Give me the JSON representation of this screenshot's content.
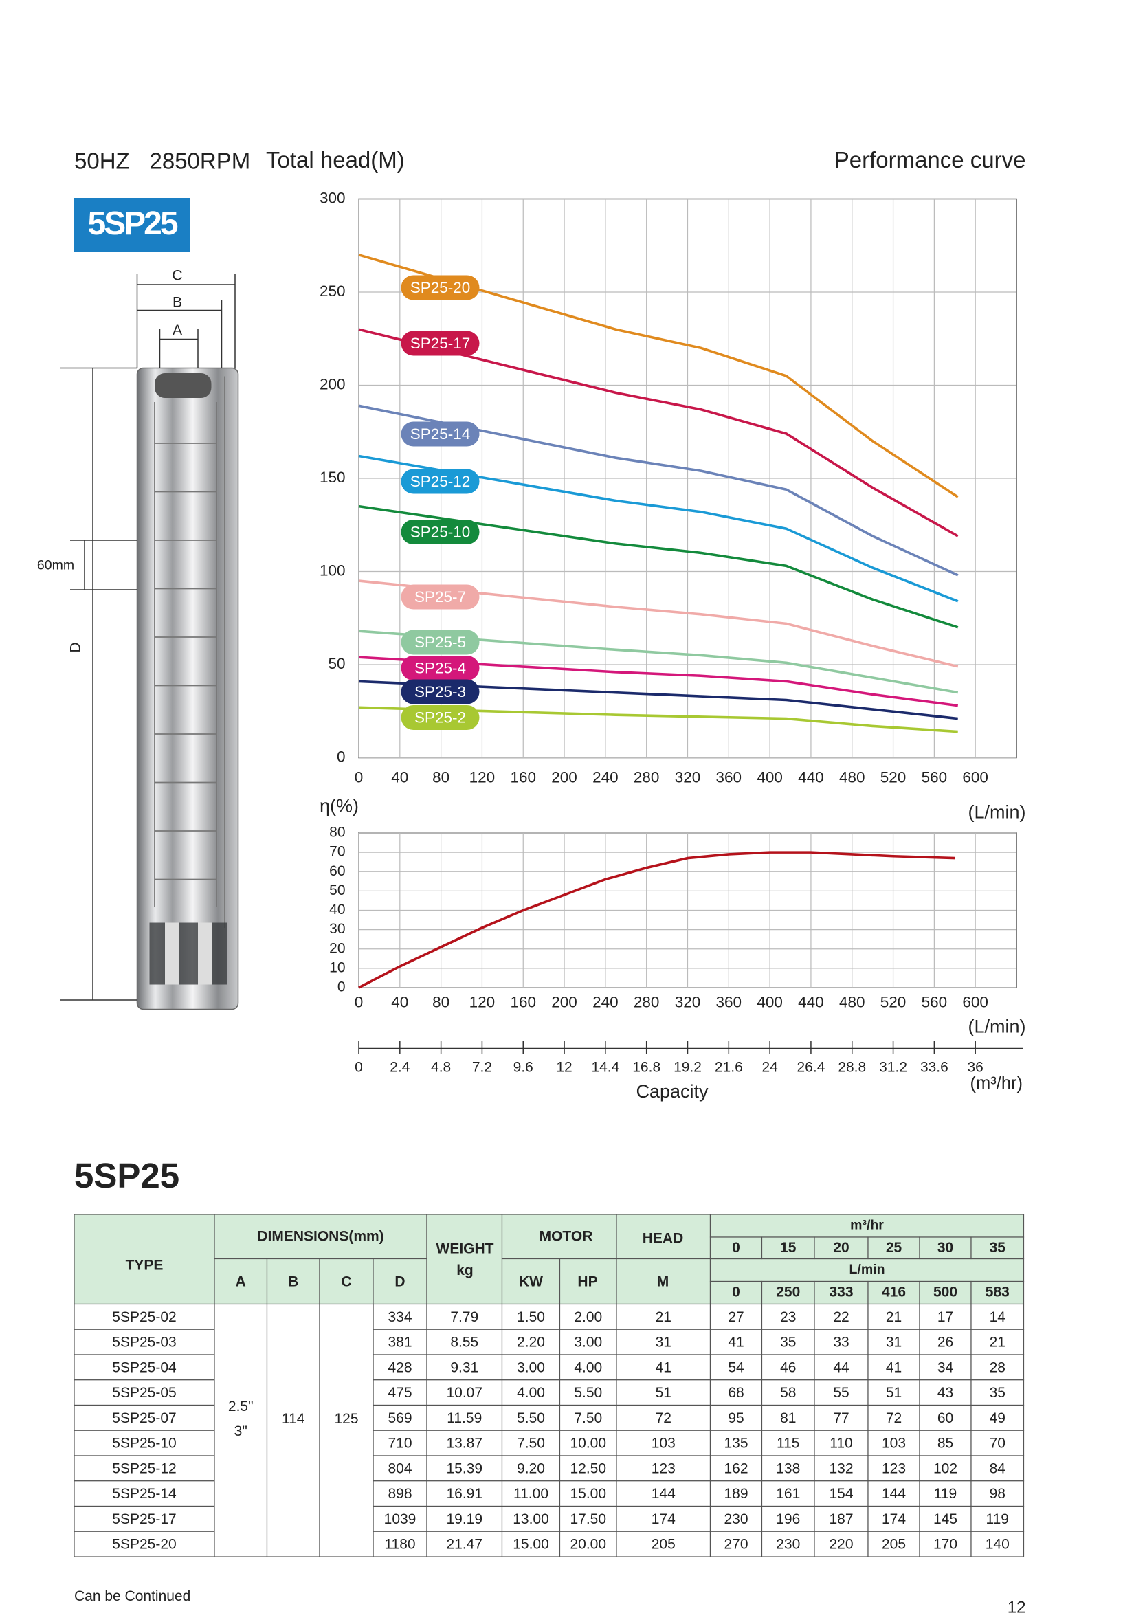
{
  "header": {
    "frequency": "50HZ",
    "speed": "2850RPM",
    "model_badge": "5SP25"
  },
  "chart_data": [
    {
      "type": "line",
      "title": "Performance curve",
      "y_label": "Total head(M)",
      "x_label": "(L/min)",
      "x": [
        0,
        250,
        333,
        416,
        500,
        583
      ],
      "xlim": [
        0,
        640
      ],
      "xticks": [
        0,
        40,
        80,
        120,
        160,
        200,
        240,
        280,
        320,
        360,
        400,
        440,
        480,
        520,
        560,
        600
      ],
      "ylim": [
        0,
        300
      ],
      "yticks": [
        0,
        50,
        100,
        150,
        200,
        250,
        300
      ],
      "grid": true,
      "series": [
        {
          "name": "SP25-20",
          "color": "#e08a1e",
          "values": [
            270,
            230,
            220,
            205,
            170,
            140
          ]
        },
        {
          "name": "SP25-17",
          "color": "#c8174a",
          "values": [
            230,
            196,
            187,
            174,
            145,
            119
          ]
        },
        {
          "name": "SP25-14",
          "color": "#6b83b8",
          "values": [
            189,
            161,
            154,
            144,
            119,
            98
          ]
        },
        {
          "name": "SP25-12",
          "color": "#1a9ad6",
          "values": [
            162,
            138,
            132,
            123,
            102,
            84
          ]
        },
        {
          "name": "SP25-10",
          "color": "#138a3c",
          "values": [
            135,
            115,
            110,
            103,
            85,
            70
          ]
        },
        {
          "name": "SP25-7",
          "color": "#f0aaa8",
          "values": [
            95,
            81,
            77,
            72,
            60,
            49
          ]
        },
        {
          "name": "SP25-5",
          "color": "#8fc9a0",
          "values": [
            68,
            58,
            55,
            51,
            43,
            35
          ]
        },
        {
          "name": "SP25-4",
          "color": "#d4177a",
          "values": [
            54,
            46,
            44,
            41,
            34,
            28
          ]
        },
        {
          "name": "SP25-3",
          "color": "#1b2a6b",
          "values": [
            41,
            35,
            33,
            31,
            26,
            21
          ]
        },
        {
          "name": "SP25-2",
          "color": "#a8c832",
          "values": [
            27,
            23,
            22,
            21,
            17,
            14
          ]
        }
      ]
    },
    {
      "type": "line",
      "y_label": "η(%)",
      "x_label": "(L/min)",
      "color": "#b5121b",
      "x": [
        0,
        40,
        80,
        120,
        160,
        200,
        240,
        280,
        320,
        360,
        400,
        440,
        480,
        520,
        580
      ],
      "values": [
        0,
        11,
        21,
        31,
        40,
        48,
        56,
        62,
        67,
        69,
        70,
        70,
        69,
        68,
        67
      ],
      "xlim": [
        0,
        640
      ],
      "xticks": [
        0,
        40,
        80,
        120,
        160,
        200,
        240,
        280,
        320,
        360,
        400,
        440,
        480,
        520,
        560,
        600
      ],
      "ylim": [
        0,
        80
      ],
      "yticks": [
        0,
        10,
        20,
        30,
        40,
        50,
        60,
        70,
        80
      ],
      "grid": true
    }
  ],
  "capacity_axis": {
    "label": "Capacity",
    "unit": "(m³/hr)",
    "lim": [
      0,
      38.4
    ],
    "ticks": [
      0,
      2.4,
      4.8,
      7.2,
      9.6,
      12,
      14.4,
      16.8,
      19.2,
      21.6,
      24,
      26.4,
      28.8,
      31.2,
      33.6,
      36
    ]
  },
  "dimension_labels": {
    "C": "C",
    "B": "B",
    "A": "A",
    "D": "D",
    "spacing": "60mm"
  },
  "table": {
    "title": "5SP25",
    "columns": {
      "type": "TYPE",
      "dimensions": "DIMENSIONS(mm)",
      "dims": [
        "A",
        "B",
        "C",
        "D"
      ],
      "weight": "WEIGHT",
      "weight_unit": "kg",
      "motor": "MOTOR",
      "motor_cols": [
        "KW",
        "HP"
      ],
      "head": "HEAD",
      "head_unit": "M",
      "flow_m3": "m³/hr",
      "flow_m3_values": [
        "0",
        "15",
        "20",
        "25",
        "30",
        "35"
      ],
      "flow_l": "L/min",
      "flow_l_values": [
        "0",
        "250",
        "333",
        "416",
        "500",
        "583"
      ]
    },
    "shared": {
      "A": [
        "2.5\"",
        "3\""
      ],
      "B": "114",
      "C": "125"
    },
    "rows": [
      [
        "5SP25-02",
        "334",
        "7.79",
        "1.50",
        "2.00",
        "21",
        "27",
        "23",
        "22",
        "21",
        "17",
        "14"
      ],
      [
        "5SP25-03",
        "381",
        "8.55",
        "2.20",
        "3.00",
        "31",
        "41",
        "35",
        "33",
        "31",
        "26",
        "21"
      ],
      [
        "5SP25-04",
        "428",
        "9.31",
        "3.00",
        "4.00",
        "41",
        "54",
        "46",
        "44",
        "41",
        "34",
        "28"
      ],
      [
        "5SP25-05",
        "475",
        "10.07",
        "4.00",
        "5.50",
        "51",
        "68",
        "58",
        "55",
        "51",
        "43",
        "35"
      ],
      [
        "5SP25-07",
        "569",
        "11.59",
        "5.50",
        "7.50",
        "72",
        "95",
        "81",
        "77",
        "72",
        "60",
        "49"
      ],
      [
        "5SP25-10",
        "710",
        "13.87",
        "7.50",
        "10.00",
        "103",
        "135",
        "115",
        "110",
        "103",
        "85",
        "70"
      ],
      [
        "5SP25-12",
        "804",
        "15.39",
        "9.20",
        "12.50",
        "123",
        "162",
        "138",
        "132",
        "123",
        "102",
        "84"
      ],
      [
        "5SP25-14",
        "898",
        "16.91",
        "11.00",
        "15.00",
        "144",
        "189",
        "161",
        "154",
        "144",
        "119",
        "98"
      ],
      [
        "5SP25-17",
        "1039",
        "19.19",
        "13.00",
        "17.50",
        "174",
        "230",
        "196",
        "187",
        "174",
        "145",
        "119"
      ],
      [
        "5SP25-20",
        "1180",
        "21.47",
        "15.00",
        "20.00",
        "205",
        "270",
        "230",
        "220",
        "205",
        "170",
        "140"
      ]
    ]
  },
  "footer": {
    "note": "Can be Continued",
    "page": "12"
  }
}
